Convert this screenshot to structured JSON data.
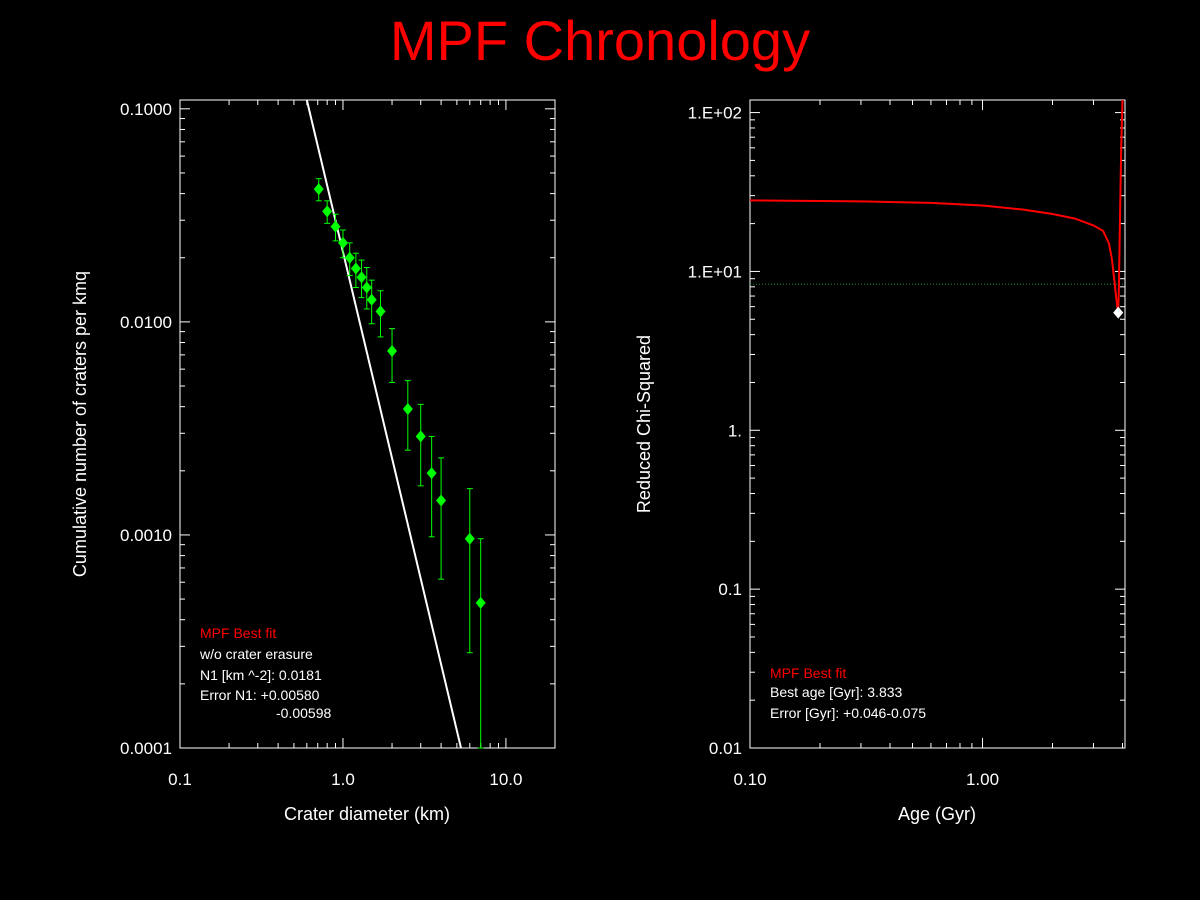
{
  "title": "MPF Chronology",
  "colors": {
    "background": "#000000",
    "title": "#ff0000",
    "axes": "#ffffff",
    "data": "#00ff00",
    "fit": "#ffffff",
    "chi_curve": "#ff0000",
    "threshold": "#228b22",
    "best_marker": "#ffffff"
  },
  "chart_data": [
    {
      "type": "scatter",
      "xlabel": "Crater diameter (km)",
      "ylabel": "Cumulative number of craters per kmq",
      "x_scale": "log",
      "y_scale": "log",
      "xlim": [
        0.1,
        20
      ],
      "ylim": [
        0.0001,
        0.11
      ],
      "x_ticks": [
        {
          "v": 0.1,
          "label": "0.1"
        },
        {
          "v": 1.0,
          "label": "1.0"
        },
        {
          "v": 10.0,
          "label": "10.0"
        }
      ],
      "y_ticks": [
        {
          "v": 0.0001,
          "label": "0.0001"
        },
        {
          "v": 0.001,
          "label": "0.0010"
        },
        {
          "v": 0.01,
          "label": "0.0100"
        },
        {
          "v": 0.1,
          "label": "0.1000"
        }
      ],
      "points": [
        {
          "x": 0.71,
          "y": 0.042,
          "lo": 0.037,
          "hi": 0.047
        },
        {
          "x": 0.8,
          "y": 0.033,
          "lo": 0.029,
          "hi": 0.037
        },
        {
          "x": 0.9,
          "y": 0.028,
          "lo": 0.024,
          "hi": 0.032
        },
        {
          "x": 1.0,
          "y": 0.0235,
          "lo": 0.02,
          "hi": 0.027
        },
        {
          "x": 1.1,
          "y": 0.02,
          "lo": 0.0165,
          "hi": 0.0235
        },
        {
          "x": 1.2,
          "y": 0.0178,
          "lo": 0.0145,
          "hi": 0.021
        },
        {
          "x": 1.3,
          "y": 0.0162,
          "lo": 0.013,
          "hi": 0.0195
        },
        {
          "x": 1.4,
          "y": 0.0145,
          "lo": 0.0115,
          "hi": 0.018
        },
        {
          "x": 1.5,
          "y": 0.0127,
          "lo": 0.0098,
          "hi": 0.0157
        },
        {
          "x": 1.7,
          "y": 0.0112,
          "lo": 0.0085,
          "hi": 0.014
        },
        {
          "x": 2.0,
          "y": 0.0073,
          "lo": 0.0052,
          "hi": 0.0093
        },
        {
          "x": 2.5,
          "y": 0.0039,
          "lo": 0.0025,
          "hi": 0.0053
        },
        {
          "x": 3.0,
          "y": 0.0029,
          "lo": 0.0017,
          "hi": 0.0041
        },
        {
          "x": 3.5,
          "y": 0.00195,
          "lo": 0.00098,
          "hi": 0.0029
        },
        {
          "x": 4.0,
          "y": 0.00145,
          "lo": 0.00062,
          "hi": 0.0023
        },
        {
          "x": 6.0,
          "y": 0.00096,
          "lo": 0.00028,
          "hi": 0.00165
        },
        {
          "x": 7.0,
          "y": 0.00048,
          "lo": 0.0001,
          "hi": 0.00096
        }
      ],
      "fit_line": {
        "x": [
          0.6,
          5.3
        ],
        "y": [
          0.11,
          0.0001
        ]
      },
      "legend": {
        "title": "MPF Best fit",
        "lines": [
          "w/o crater erasure",
          "N1 [km ^-2]: 0.0181",
          "Error N1: +0.00580",
          "-0.00598"
        ]
      }
    },
    {
      "type": "line",
      "xlabel": "Age (Gyr)",
      "ylabel": "Reduced Chi-Squared",
      "x_scale": "log",
      "y_scale": "log",
      "xlim": [
        0.1,
        4.1
      ],
      "ylim": [
        0.01,
        120
      ],
      "x_ticks": [
        {
          "v": 0.1,
          "label": "0.10"
        },
        {
          "v": 1.0,
          "label": "1.00"
        }
      ],
      "y_ticks": [
        {
          "v": 0.01,
          "label": "0.01"
        },
        {
          "v": 0.1,
          "label": "0.1"
        },
        {
          "v": 1,
          "label": "1."
        },
        {
          "v": 10,
          "label": "1.E+01"
        },
        {
          "v": 100,
          "label": "1.E+02"
        }
      ],
      "curve": {
        "x": [
          0.1,
          0.3,
          0.6,
          1.0,
          1.5,
          2.0,
          2.5,
          3.0,
          3.3,
          3.5,
          3.6,
          3.7,
          3.75,
          3.8,
          3.833,
          3.86,
          3.9,
          3.95,
          4.0
        ],
        "y": [
          28,
          27.6,
          27,
          26,
          24.5,
          23,
          21.5,
          19.5,
          18,
          15,
          12,
          8.5,
          7,
          6,
          5.5,
          8,
          20,
          60,
          120
        ]
      },
      "threshold_y": 8.3,
      "best_point": {
        "x": 3.833,
        "y": 5.5
      },
      "legend": {
        "title": "MPF Best fit",
        "lines": [
          "Best age [Gyr]: 3.833",
          "Error [Gyr]: +0.046-0.075"
        ]
      }
    }
  ]
}
